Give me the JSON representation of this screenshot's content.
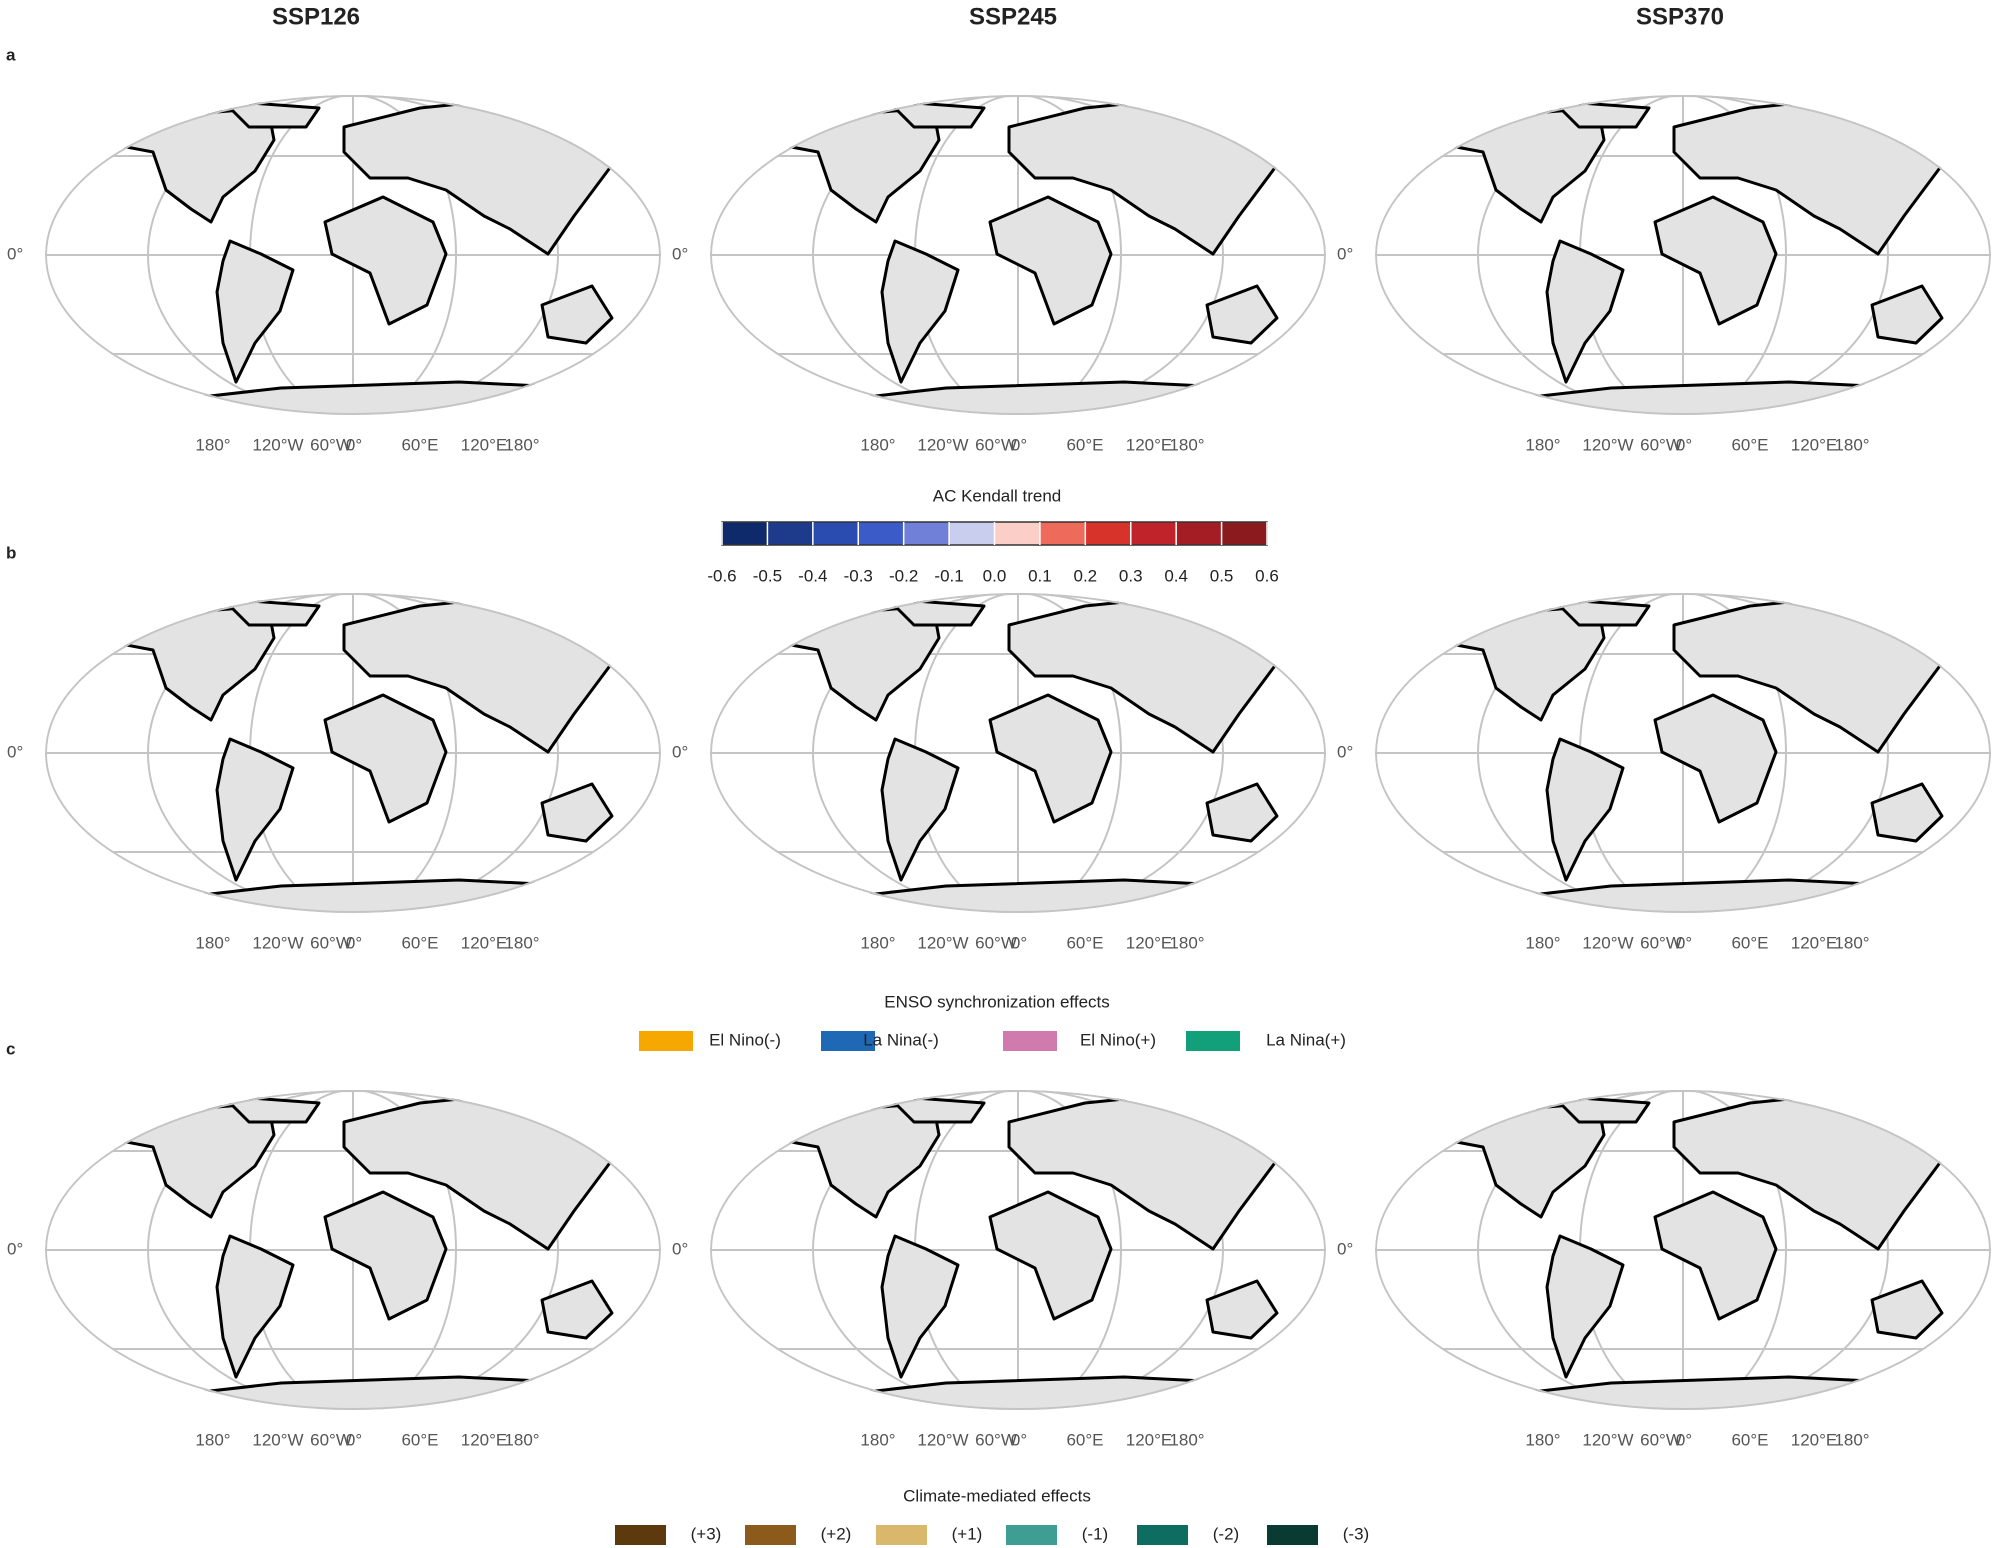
{
  "columns": [
    "SSP126",
    "SSP245",
    "SSP370"
  ],
  "panels": [
    {
      "letter": "a"
    },
    {
      "letter": "b"
    },
    {
      "letter": "c"
    }
  ],
  "lat_label": "0°",
  "lon_labels": [
    "180°",
    "120°W",
    "60°W",
    "0°",
    "60°E",
    "120°E",
    "180°"
  ],
  "colorbar": {
    "title": "AC Kendall trend",
    "ticks": [
      -0.6,
      -0.5,
      -0.4,
      -0.3,
      -0.2,
      -0.1,
      {
        "value": 0,
        "label": "0.0"
      },
      0.1,
      0.2,
      0.3,
      0.4,
      0.5,
      0.6
    ],
    "colors": [
      "#0f2a6b",
      "#1e3a8a",
      "#2a4bb0",
      "#3b5cc8",
      "#7080d8",
      "#c9cdee",
      "#fbcfc7",
      "#ee6a5a",
      "#d8332b",
      "#c0242a",
      "#a51d24",
      "#8a1a1e"
    ]
  },
  "enso_legend": {
    "title": "ENSO synchronization effects",
    "items": [
      {
        "label": "El Nino(-)",
        "color": "#f6a800"
      },
      {
        "label": "La Nina(-)",
        "color": "#1f68b5"
      },
      {
        "label": "El Nino(+)",
        "color": "#d07aae"
      },
      {
        "label": "La Nina(+)",
        "color": "#12a07a"
      }
    ]
  },
  "climate_legend": {
    "title": "Climate-mediated effects",
    "items": [
      {
        "label": "(+3)",
        "color": "#5c3a0e"
      },
      {
        "label": "(+2)",
        "color": "#8c5a1a"
      },
      {
        "label": "(+1)",
        "color": "#d9b86c"
      },
      {
        "label": "(-1)",
        "color": "#3f9e93"
      },
      {
        "label": "(-2)",
        "color": "#0d6d61"
      },
      {
        "label": "(-3)",
        "color": "#0a3b32"
      }
    ]
  }
}
